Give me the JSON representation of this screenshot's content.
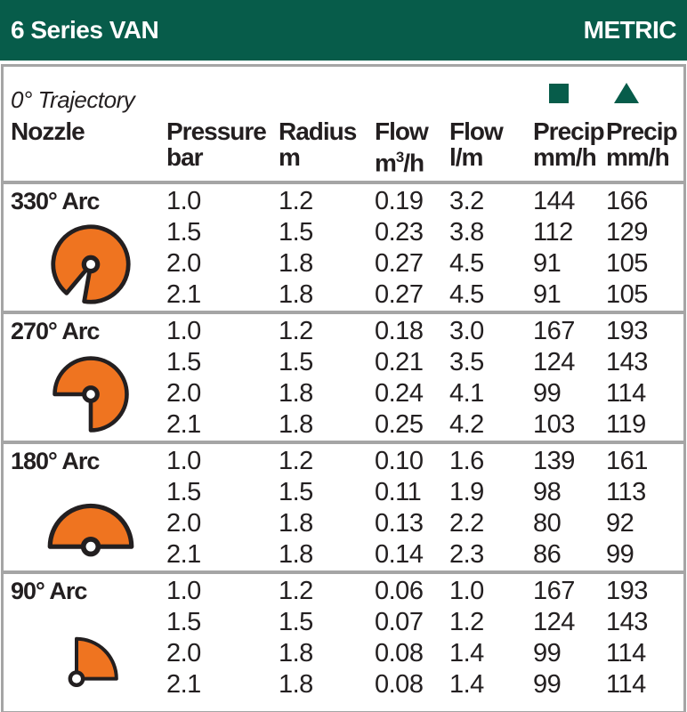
{
  "header": {
    "title": "6 Series VAN",
    "units_label": "METRIC"
  },
  "table": {
    "trajectory_label": "0° Trajectory",
    "legend": {
      "square_icon": "square-marker",
      "triangle_icon": "triangle-marker"
    },
    "columns": [
      {
        "label": "Nozzle",
        "sub": ""
      },
      {
        "label": "Pressure",
        "sub": "bar"
      },
      {
        "label": "Radius",
        "sub": "m"
      },
      {
        "label": "Flow",
        "sub": "m³/h"
      },
      {
        "label": "Flow",
        "sub": "l/m"
      },
      {
        "label": "Precip",
        "sub": "mm/h",
        "marker": "square"
      },
      {
        "label": "Precip",
        "sub": "mm/h",
        "marker": "triangle"
      }
    ],
    "sections": [
      {
        "nozzle": "330° Arc",
        "arc_degrees": 330,
        "rows": [
          [
            "1.0",
            "1.2",
            "0.19",
            "3.2",
            "144",
            "166"
          ],
          [
            "1.5",
            "1.5",
            "0.23",
            "3.8",
            "112",
            "129"
          ],
          [
            "2.0",
            "1.8",
            "0.27",
            "4.5",
            "91",
            "105"
          ],
          [
            "2.1",
            "1.8",
            "0.27",
            "4.5",
            "91",
            "105"
          ]
        ]
      },
      {
        "nozzle": "270° Arc",
        "arc_degrees": 270,
        "rows": [
          [
            "1.0",
            "1.2",
            "0.18",
            "3.0",
            "167",
            "193"
          ],
          [
            "1.5",
            "1.5",
            "0.21",
            "3.5",
            "124",
            "143"
          ],
          [
            "2.0",
            "1.8",
            "0.24",
            "4.1",
            "99",
            "114"
          ],
          [
            "2.1",
            "1.8",
            "0.25",
            "4.2",
            "103",
            "119"
          ]
        ]
      },
      {
        "nozzle": "180° Arc",
        "arc_degrees": 180,
        "rows": [
          [
            "1.0",
            "1.2",
            "0.10",
            "1.6",
            "139",
            "161"
          ],
          [
            "1.5",
            "1.5",
            "0.11",
            "1.9",
            "98",
            "113"
          ],
          [
            "2.0",
            "1.8",
            "0.13",
            "2.2",
            "80",
            "92"
          ],
          [
            "2.1",
            "1.8",
            "0.14",
            "2.3",
            "86",
            "99"
          ]
        ]
      },
      {
        "nozzle": "90° Arc",
        "arc_degrees": 90,
        "rows": [
          [
            "1.0",
            "1.2",
            "0.06",
            "1.0",
            "167",
            "193"
          ],
          [
            "1.5",
            "1.5",
            "0.07",
            "1.2",
            "124",
            "143"
          ],
          [
            "2.0",
            "1.8",
            "0.08",
            "1.4",
            "99",
            "114"
          ],
          [
            "2.1",
            "1.8",
            "0.08",
            "1.4",
            "99",
            "114"
          ]
        ]
      }
    ]
  },
  "colors": {
    "brand_green": "#075c4a",
    "arc_orange": "#ef7420",
    "outline_dark": "#231f20",
    "border_gray": "#a5a5a5"
  }
}
